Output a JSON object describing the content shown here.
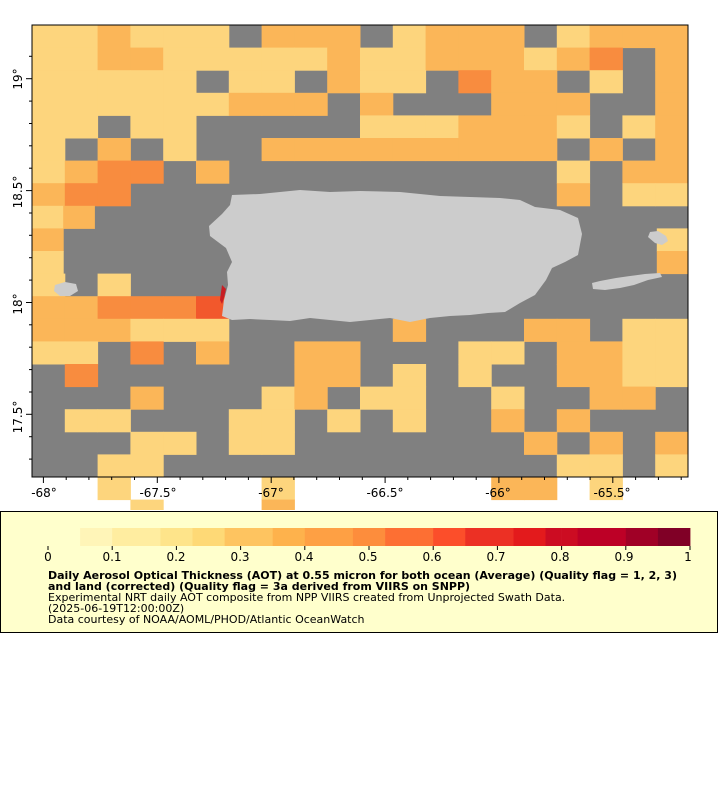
{
  "map": {
    "land_color": "#cccccc",
    "nodata_color": "#808080",
    "y_ticks": [
      "19°",
      "18.5°",
      "18°",
      "17.5°"
    ],
    "x_ticks": [
      "-68°",
      "-67.5°",
      "-67°",
      "-66.5°",
      "-66°",
      "-65.5°"
    ]
  },
  "legend": {
    "scale_labels": [
      "0",
      "0.1",
      "0.2",
      "0.3",
      "0.4",
      "0.5",
      "0.6",
      "0.7",
      "0.8",
      "0.9",
      "1"
    ],
    "title": "Daily Aerosol Optical Thickness (AOT) at 0.55 micron for both ocean (Average) (Quality flag = 1, 2, 3) and land (corrected) (Quality flag = 3a derived from VIIRS on SNPP)",
    "description": "Experimental NRT daily AOT composite from NPP VIIRS created from Unprojected Swath Data.",
    "time": "(2025-06-19T12:00:00Z)",
    "credit": "Data courtesy of NOAA/AOML/PHOD/Atlantic OceanWatch",
    "colors": [
      "#ffffcc",
      "#fff5b8",
      "#ffeda0",
      "#fee48a",
      "#fed976",
      "#fec460",
      "#feb24c",
      "#fea044",
      "#fd8d3c",
      "#fd6f33",
      "#fc4e2a",
      "#ec3024",
      "#e31a1c",
      "#cc0c22",
      "#bd0026",
      "#a00026",
      "#800026"
    ]
  },
  "chart_data": {
    "type": "heatmap",
    "title": "Daily Aerosol Optical Thickness (AOT) at 0.55 micron for both ocean (Average) (Quality flag = 1, 2, 3) and land (corrected) (Quality flag = 3a derived from VIIRS on SNPP)",
    "x_range": [
      -68.05,
      -65.17
    ],
    "y_range": [
      17.22,
      19.24
    ],
    "color_range": [
      0,
      1
    ],
    "cell_deg": 0.1,
    "rows_top_to_bottom": [
      "223222.333-2333-2333",
      "223322222322333234-3",
      "22222.22-322-433.2-3",
      "222222333-3...333-.3",
      "22-22-..--2223332-23",
      "2-3-2-.333333333.3-3",
      "2344.3..........2-33",
      "344.............3-22",
      "23...................",
      "3...................2",
      "2...................3",
      "2-2..-4.............",
      "334445..............",
      "333222.....3...33.22",
      "22-4-3..33...22.3322",
      ".4......33.2.2..3322",
      "...3...23.22..2..33.",
      ".22...22.2.2..3.3...",
      "...22.22.......3.3.3",
      "..22............22.2",
      "..2....2......33.2..",
      "...2...3............"
    ]
  }
}
